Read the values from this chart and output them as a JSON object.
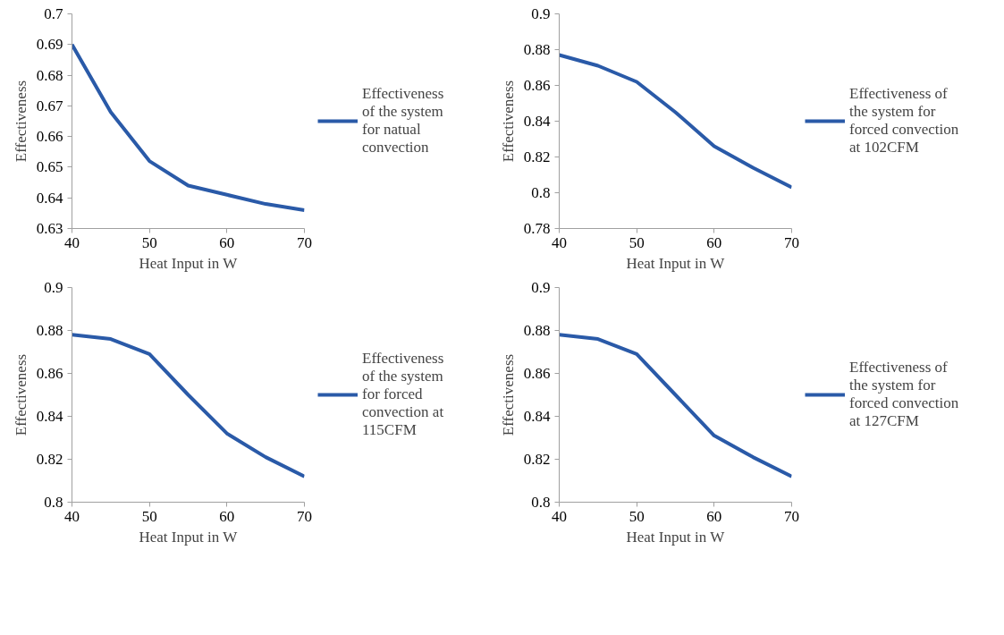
{
  "chart_data": [
    {
      "type": "line",
      "xlabel": "Heat Input in W",
      "ylabel": "Effectiveness",
      "x": [
        40,
        45,
        50,
        55,
        60,
        65,
        70
      ],
      "xlim": [
        40,
        70
      ],
      "xticks": [
        40,
        50,
        60,
        70
      ],
      "ylim": [
        0.63,
        0.7
      ],
      "yticks": [
        0.63,
        0.64,
        0.65,
        0.66,
        0.67,
        0.68,
        0.69,
        0.7
      ],
      "grid": false,
      "legend": "right",
      "marker": "none",
      "line_style": "solid",
      "series": [
        {
          "name": "Effectiveness of the system for natual convection",
          "color": "#2a5aa8",
          "values": [
            0.69,
            0.668,
            0.652,
            0.644,
            0.641,
            0.638,
            0.636
          ]
        }
      ]
    },
    {
      "type": "line",
      "xlabel": "Heat Input in W",
      "ylabel": "Effectiveness",
      "x": [
        40,
        45,
        50,
        55,
        60,
        65,
        70
      ],
      "xlim": [
        40,
        70
      ],
      "xticks": [
        40,
        50,
        60,
        70
      ],
      "ylim": [
        0.78,
        0.9
      ],
      "yticks": [
        0.78,
        0.8,
        0.82,
        0.84,
        0.86,
        0.88,
        0.9
      ],
      "grid": false,
      "legend": "right",
      "marker": "none",
      "line_style": "solid",
      "series": [
        {
          "name": "Effectiveness of the system for forced convection at 102CFM",
          "color": "#2a5aa8",
          "values": [
            0.877,
            0.871,
            0.862,
            0.845,
            0.826,
            0.814,
            0.803
          ]
        }
      ]
    },
    {
      "type": "line",
      "xlabel": "Heat Input in W",
      "ylabel": "Effectiveness",
      "x": [
        40,
        45,
        50,
        55,
        60,
        65,
        70
      ],
      "xlim": [
        40,
        70
      ],
      "xticks": [
        40,
        50,
        60,
        70
      ],
      "ylim": [
        0.8,
        0.9
      ],
      "yticks": [
        0.8,
        0.82,
        0.84,
        0.86,
        0.88,
        0.9
      ],
      "grid": false,
      "legend": "right",
      "marker": "none",
      "line_style": "solid",
      "series": [
        {
          "name": "Effectiveness of the system for forced convection at 115CFM",
          "color": "#2a5aa8",
          "values": [
            0.878,
            0.876,
            0.869,
            0.85,
            0.832,
            0.821,
            0.812
          ]
        }
      ]
    },
    {
      "type": "line",
      "xlabel": "Heat Input in W",
      "ylabel": "Effectiveness",
      "x": [
        40,
        45,
        50,
        55,
        60,
        65,
        70
      ],
      "xlim": [
        40,
        70
      ],
      "xticks": [
        40,
        50,
        60,
        70
      ],
      "ylim": [
        0.8,
        0.9
      ],
      "yticks": [
        0.8,
        0.82,
        0.84,
        0.86,
        0.88,
        0.9
      ],
      "grid": false,
      "legend": "right",
      "marker": "none",
      "line_style": "solid",
      "series": [
        {
          "name": "Effectiveness of the system for forced convection at 127CFM",
          "color": "#2a5aa8",
          "values": [
            0.878,
            0.876,
            0.869,
            0.85,
            0.831,
            0.821,
            0.812
          ]
        }
      ]
    }
  ]
}
